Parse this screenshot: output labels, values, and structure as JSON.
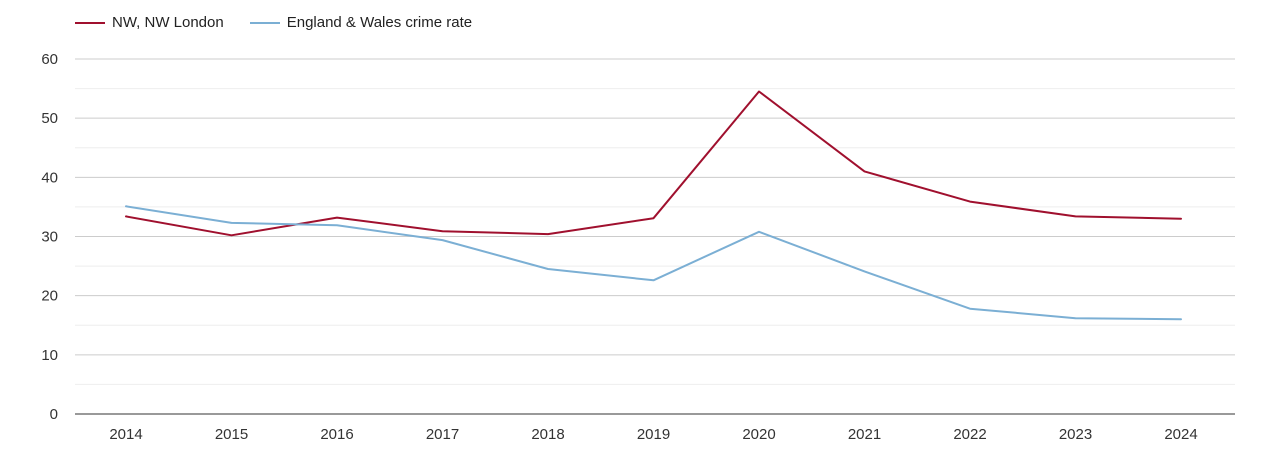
{
  "chart_data": {
    "type": "line",
    "title": "",
    "xlabel": "",
    "ylabel": "",
    "categories": [
      "2014",
      "2015",
      "2016",
      "2017",
      "2018",
      "2019",
      "2020",
      "2021",
      "2022",
      "2023",
      "2024"
    ],
    "ylim": [
      0,
      60
    ],
    "yticks": [
      "0",
      "10",
      "20",
      "30",
      "40",
      "50",
      "60"
    ],
    "grid": true,
    "legend_position": "top-left",
    "series": [
      {
        "name": "NW, NW London",
        "color": "#a0102e",
        "values": [
          33.4,
          30.2,
          33.2,
          30.9,
          30.4,
          33.1,
          54.5,
          41.0,
          35.9,
          33.4,
          33.0
        ]
      },
      {
        "name": "England & Wales crime rate",
        "color": "#7bafd4",
        "values": [
          35.1,
          32.3,
          31.9,
          29.4,
          24.5,
          22.6,
          30.8,
          24.1,
          17.8,
          16.2,
          16.0
        ]
      }
    ]
  }
}
